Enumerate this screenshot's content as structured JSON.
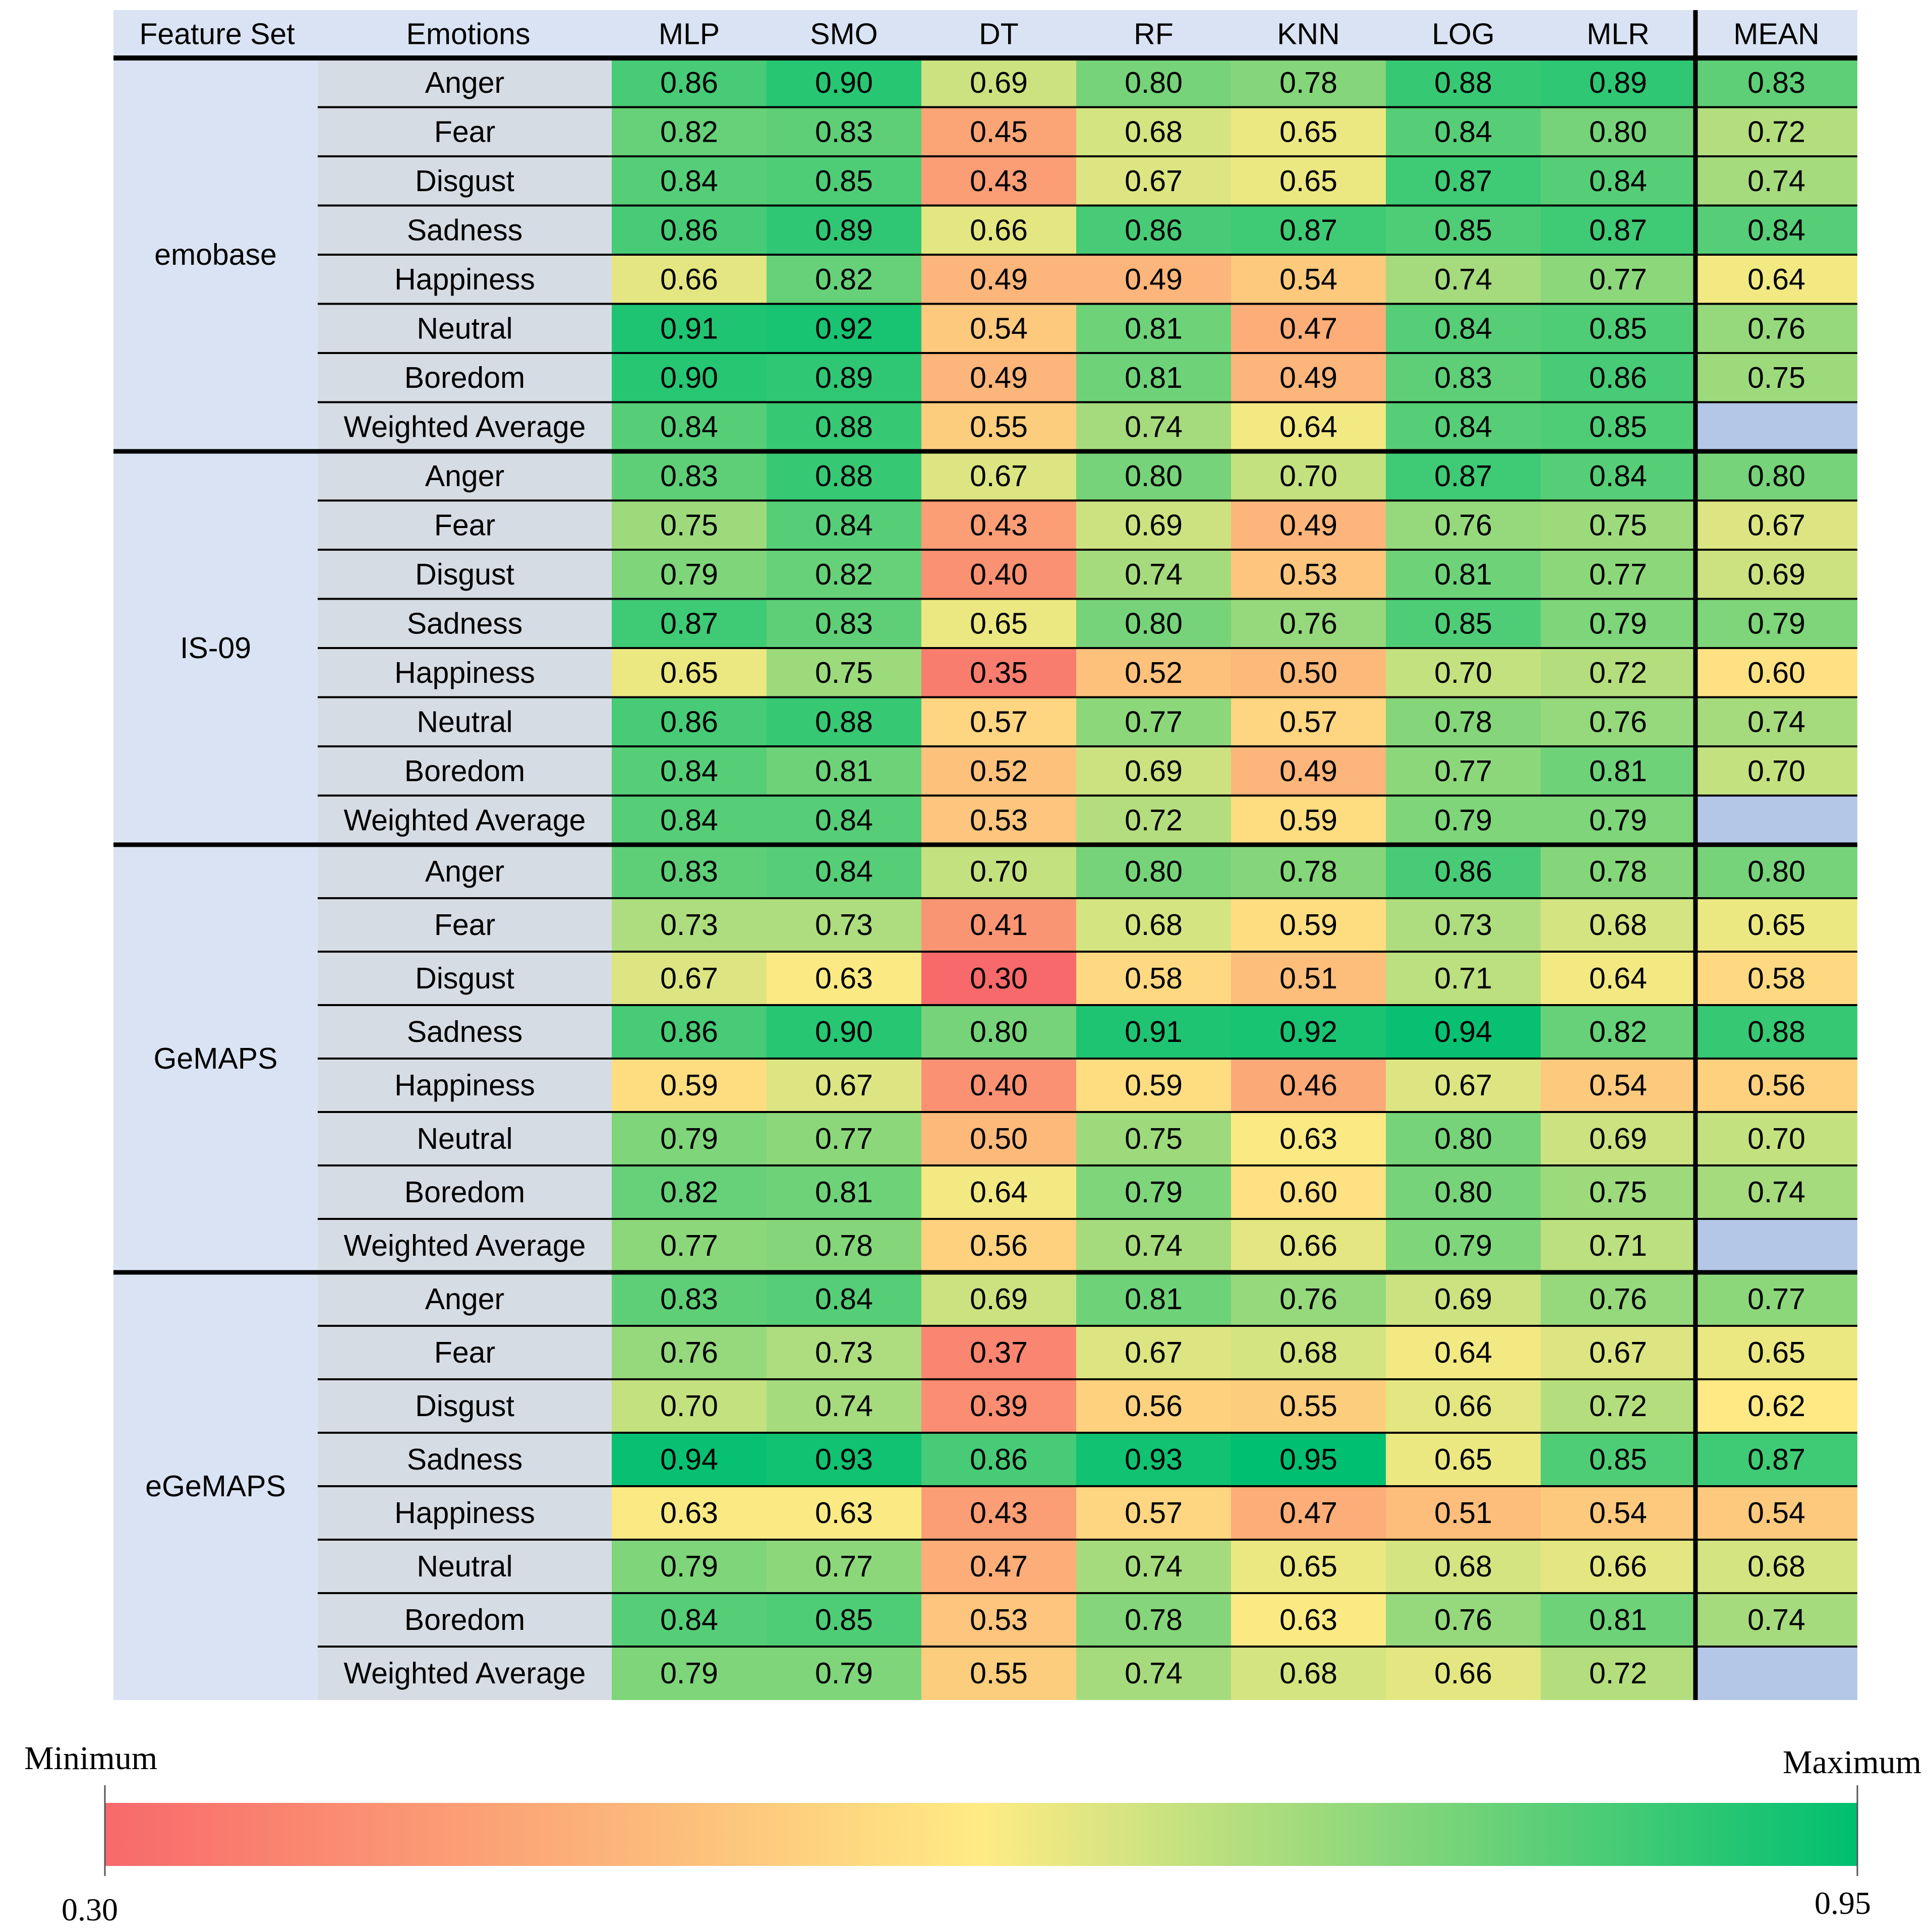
{
  "chart_data": {
    "type": "heatmap",
    "columns": {
      "feature_set": "Feature Set",
      "emotions": "Emotions",
      "classifiers": [
        "MLP",
        "SMO",
        "DT",
        "RF",
        "KNN",
        "LOG",
        "MLR"
      ],
      "mean": "MEAN"
    },
    "groups": [
      {
        "name": "emobase",
        "rows": [
          {
            "emotion": "Anger",
            "values": [
              "0.86",
              "0.90",
              "0.69",
              "0.80",
              "0.78",
              "0.88",
              "0.89"
            ],
            "mean": "0.83"
          },
          {
            "emotion": "Fear",
            "values": [
              "0.82",
              "0.83",
              "0.45",
              "0.68",
              "0.65",
              "0.84",
              "0.80"
            ],
            "mean": "0.72"
          },
          {
            "emotion": "Disgust",
            "values": [
              "0.84",
              "0.85",
              "0.43",
              "0.67",
              "0.65",
              "0.87",
              "0.84"
            ],
            "mean": "0.74"
          },
          {
            "emotion": "Sadness",
            "values": [
              "0.86",
              "0.89",
              "0.66",
              "0.86",
              "0.87",
              "0.85",
              "0.87"
            ],
            "mean": "0.84"
          },
          {
            "emotion": "Happiness",
            "values": [
              "0.66",
              "0.82",
              "0.49",
              "0.49",
              "0.54",
              "0.74",
              "0.77"
            ],
            "mean": "0.64"
          },
          {
            "emotion": "Neutral",
            "values": [
              "0.91",
              "0.92",
              "0.54",
              "0.81",
              "0.47",
              "0.84",
              "0.85"
            ],
            "mean": "0.76"
          },
          {
            "emotion": "Boredom",
            "values": [
              "0.90",
              "0.89",
              "0.49",
              "0.81",
              "0.49",
              "0.83",
              "0.86"
            ],
            "mean": "0.75"
          },
          {
            "emotion": "Weighted Average",
            "values": [
              "0.84",
              "0.88",
              "0.55",
              "0.74",
              "0.64",
              "0.84",
              "0.85"
            ],
            "mean": null
          }
        ]
      },
      {
        "name": "IS-09",
        "rows": [
          {
            "emotion": "Anger",
            "values": [
              "0.83",
              "0.88",
              "0.67",
              "0.80",
              "0.70",
              "0.87",
              "0.84"
            ],
            "mean": "0.80"
          },
          {
            "emotion": "Fear",
            "values": [
              "0.75",
              "0.84",
              "0.43",
              "0.69",
              "0.49",
              "0.76",
              "0.75"
            ],
            "mean": "0.67"
          },
          {
            "emotion": "Disgust",
            "values": [
              "0.79",
              "0.82",
              "0.40",
              "0.74",
              "0.53",
              "0.81",
              "0.77"
            ],
            "mean": "0.69"
          },
          {
            "emotion": "Sadness",
            "values": [
              "0.87",
              "0.83",
              "0.65",
              "0.80",
              "0.76",
              "0.85",
              "0.79"
            ],
            "mean": "0.79"
          },
          {
            "emotion": "Happiness",
            "values": [
              "0.65",
              "0.75",
              "0.35",
              "0.52",
              "0.50",
              "0.70",
              "0.72"
            ],
            "mean": "0.60"
          },
          {
            "emotion": "Neutral",
            "values": [
              "0.86",
              "0.88",
              "0.57",
              "0.77",
              "0.57",
              "0.78",
              "0.76"
            ],
            "mean": "0.74"
          },
          {
            "emotion": "Boredom",
            "values": [
              "0.84",
              "0.81",
              "0.52",
              "0.69",
              "0.49",
              "0.77",
              "0.81"
            ],
            "mean": "0.70"
          },
          {
            "emotion": "Weighted Average",
            "values": [
              "0.84",
              "0.84",
              "0.53",
              "0.72",
              "0.59",
              "0.79",
              "0.79"
            ],
            "mean": null
          }
        ]
      },
      {
        "name": "GeMAPS",
        "rows": [
          {
            "emotion": "Anger",
            "values": [
              "0.83",
              "0.84",
              "0.70",
              "0.80",
              "0.78",
              "0.86",
              "0.78"
            ],
            "mean": "0.80"
          },
          {
            "emotion": "Fear",
            "values": [
              "0.73",
              "0.73",
              "0.41",
              "0.68",
              "0.59",
              "0.73",
              "0.68"
            ],
            "mean": "0.65"
          },
          {
            "emotion": "Disgust",
            "values": [
              "0.67",
              "0.63",
              "0.30",
              "0.58",
              "0.51",
              "0.71",
              "0.64"
            ],
            "mean": "0.58"
          },
          {
            "emotion": "Sadness",
            "values": [
              "0.86",
              "0.90",
              "0.80",
              "0.91",
              "0.92",
              "0.94",
              "0.82"
            ],
            "mean": "0.88"
          },
          {
            "emotion": "Happiness",
            "values": [
              "0.59",
              "0.67",
              "0.40",
              "0.59",
              "0.46",
              "0.67",
              "0.54"
            ],
            "mean": "0.56"
          },
          {
            "emotion": "Neutral",
            "values": [
              "0.79",
              "0.77",
              "0.50",
              "0.75",
              "0.63",
              "0.80",
              "0.69"
            ],
            "mean": "0.70"
          },
          {
            "emotion": "Boredom",
            "values": [
              "0.82",
              "0.81",
              "0.64",
              "0.79",
              "0.60",
              "0.80",
              "0.75"
            ],
            "mean": "0.74"
          },
          {
            "emotion": "Weighted Average",
            "values": [
              "0.77",
              "0.78",
              "0.56",
              "0.74",
              "0.66",
              "0.79",
              "0.71"
            ],
            "mean": null
          }
        ]
      },
      {
        "name": "eGeMAPS",
        "rows": [
          {
            "emotion": "Anger",
            "values": [
              "0.83",
              "0.84",
              "0.69",
              "0.81",
              "0.76",
              "0.69",
              "0.76"
            ],
            "mean": "0.77"
          },
          {
            "emotion": "Fear",
            "values": [
              "0.76",
              "0.73",
              "0.37",
              "0.67",
              "0.68",
              "0.64",
              "0.67"
            ],
            "mean": "0.65"
          },
          {
            "emotion": "Disgust",
            "values": [
              "0.70",
              "0.74",
              "0.39",
              "0.56",
              "0.55",
              "0.66",
              "0.72"
            ],
            "mean": "0.62"
          },
          {
            "emotion": "Sadness",
            "values": [
              "0.94",
              "0.93",
              "0.86",
              "0.93",
              "0.95",
              "0.65",
              "0.85"
            ],
            "mean": "0.87"
          },
          {
            "emotion": "Happiness",
            "values": [
              "0.63",
              "0.63",
              "0.43",
              "0.57",
              "0.47",
              "0.51",
              "0.54"
            ],
            "mean": "0.54"
          },
          {
            "emotion": "Neutral",
            "values": [
              "0.79",
              "0.77",
              "0.47",
              "0.74",
              "0.65",
              "0.68",
              "0.66"
            ],
            "mean": "0.68"
          },
          {
            "emotion": "Boredom",
            "values": [
              "0.84",
              "0.85",
              "0.53",
              "0.78",
              "0.63",
              "0.76",
              "0.81"
            ],
            "mean": "0.74"
          },
          {
            "emotion": "Weighted Average",
            "values": [
              "0.79",
              "0.79",
              "0.55",
              "0.74",
              "0.68",
              "0.66",
              "0.72"
            ],
            "mean": null
          }
        ]
      }
    ],
    "color_scale": {
      "min_label": "Minimum",
      "max_label": "Maximum",
      "min_value_label": "0.30",
      "max_value_label": "0.95",
      "min": 0.3,
      "max": 0.95,
      "colors": {
        "low": "#F8696B",
        "mid": "#FFEB84",
        "high": "#00BF70"
      }
    },
    "colors": {
      "header_bg": "#DAE3F3",
      "group_bg": "#DAE3F3",
      "emotion_bg": "#D6DCE4",
      "empty_mean": "#B4C7E7"
    }
  }
}
